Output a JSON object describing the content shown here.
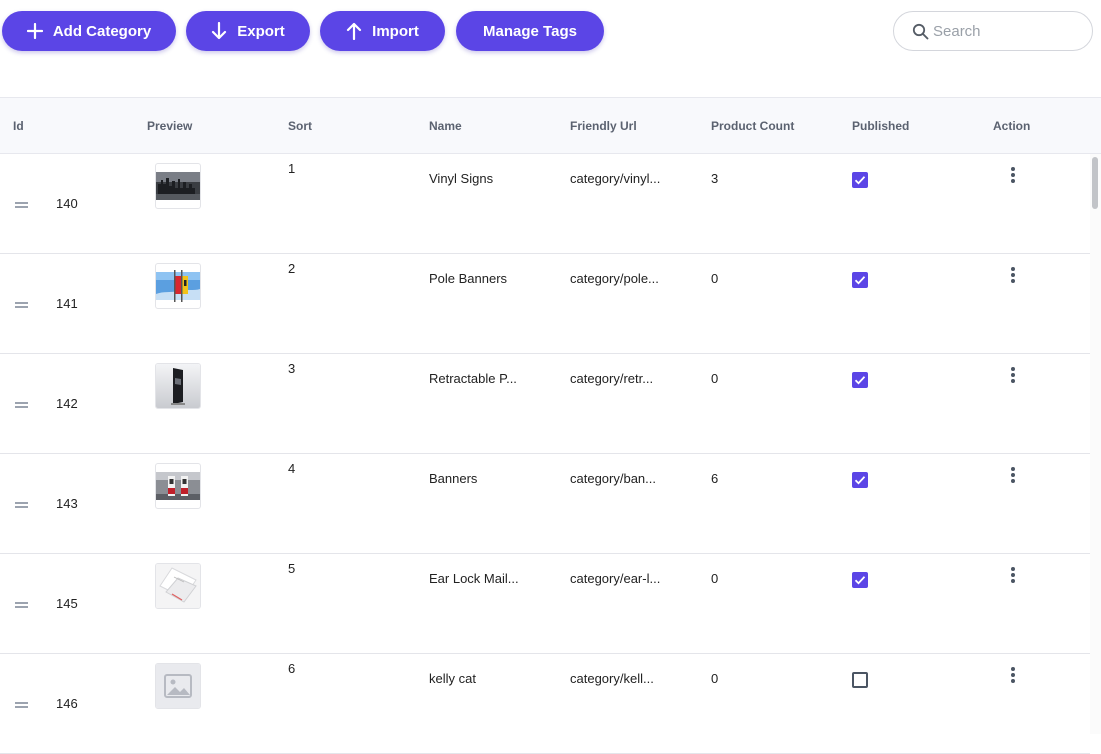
{
  "toolbar": {
    "add_category_label": "Add Category",
    "export_label": "Export",
    "import_label": "Import",
    "manage_tags_label": "Manage Tags",
    "accent_color": "#5b45e6"
  },
  "search": {
    "placeholder": "Search",
    "value": ""
  },
  "table": {
    "headers": {
      "id": "Id",
      "preview": "Preview",
      "sort": "Sort",
      "name": "Name",
      "friendly_url": "Friendly Url",
      "product_count": "Product Count",
      "published": "Published",
      "action": "Action"
    },
    "rows": [
      {
        "id": "140",
        "sort": "1",
        "name": "Vinyl Signs",
        "friendly_url": "category/vinyl...",
        "product_count": "3",
        "published": true,
        "preview": "city-sign-image"
      },
      {
        "id": "141",
        "sort": "2",
        "name": "Pole Banners",
        "friendly_url": "category/pole...",
        "product_count": "0",
        "published": true,
        "preview": "pole-banner-image"
      },
      {
        "id": "142",
        "sort": "3",
        "name": "Retractable P...",
        "friendly_url": "category/retr...",
        "product_count": "0",
        "published": true,
        "preview": "retractable-banner-image"
      },
      {
        "id": "143",
        "sort": "4",
        "name": "Banners",
        "friendly_url": "category/ban...",
        "product_count": "6",
        "published": true,
        "preview": "banners-image"
      },
      {
        "id": "145",
        "sort": "5",
        "name": "Ear Lock Mail...",
        "friendly_url": "category/ear-l...",
        "product_count": "0",
        "published": true,
        "preview": "mailer-box-image"
      },
      {
        "id": "146",
        "sort": "6",
        "name": "kelly cat",
        "friendly_url": "category/kell...",
        "product_count": "0",
        "published": false,
        "preview": "placeholder-image-icon"
      }
    ]
  }
}
